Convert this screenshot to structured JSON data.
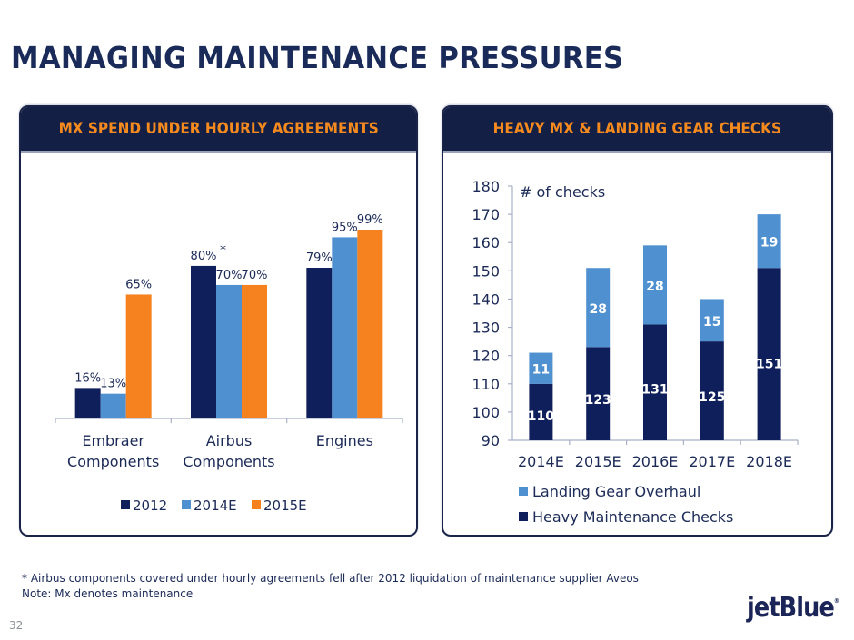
{
  "page": {
    "title": "MANAGING MAINTENANCE PRESSURES",
    "page_number": "32",
    "logo_text": "jetBlue",
    "footnote_lines": [
      "* Airbus components covered under hourly agreements fell after 2012 liquidation of maintenance supplier Aveos",
      "Note: Mx denotes maintenance"
    ],
    "colors": {
      "navy": "#0f1f5b",
      "light_blue": "#4f90d0",
      "orange": "#f5821f",
      "header_bg": "#141f45",
      "header_text": "#f58a1f"
    }
  },
  "panels": {
    "left_header": "MX SPEND UNDER HOURLY AGREEMENTS",
    "right_header": "HEAVY MX & LANDING GEAR CHECKS"
  },
  "chart_data": [
    {
      "type": "bar",
      "title": "MX SPEND UNDER HOURLY AGREEMENTS",
      "categories": [
        [
          "Embraer",
          "Components"
        ],
        [
          "Airbus",
          "Components"
        ],
        [
          "Engines"
        ]
      ],
      "series": [
        {
          "name": "2012",
          "values": [
            16,
            80,
            79
          ],
          "labels": [
            "16%",
            "80%",
            "79%"
          ],
          "color": "#0f1f5b"
        },
        {
          "name": "2014E",
          "values": [
            13,
            70,
            95
          ],
          "labels": [
            "13%",
            "70%",
            "95%"
          ],
          "color": "#4f90d0"
        },
        {
          "name": "2015E",
          "values": [
            65,
            70,
            99
          ],
          "labels": [
            "65%",
            "70%",
            "99%"
          ],
          "color": "#f5821f"
        }
      ],
      "annotations": [
        {
          "category": "Airbus Components",
          "series": "2012",
          "text": "*"
        }
      ],
      "ylim": [
        0,
        100
      ],
      "xlabel": "",
      "ylabel": "",
      "grid": false,
      "legend": "bottom"
    },
    {
      "type": "bar",
      "stacked": true,
      "title": "HEAVY MX & LANDING GEAR CHECKS",
      "ylabel": "# of checks",
      "categories": [
        "2014E",
        "2015E",
        "2016E",
        "2017E",
        "2018E"
      ],
      "series": [
        {
          "name": "Heavy Maintenance Checks",
          "values": [
            110,
            123,
            131,
            125,
            151
          ],
          "color": "#0f1f5b"
        },
        {
          "name": "Landing Gear Overhaul",
          "values": [
            11,
            28,
            28,
            15,
            19
          ],
          "color": "#4f90d0"
        }
      ],
      "ylim": [
        90,
        180
      ],
      "yticks": [
        90,
        100,
        110,
        120,
        130,
        140,
        150,
        160,
        170,
        180
      ],
      "grid": false,
      "legend": "bottom",
      "legend_order": [
        "Landing Gear Overhaul",
        "Heavy Maintenance Checks"
      ]
    }
  ]
}
